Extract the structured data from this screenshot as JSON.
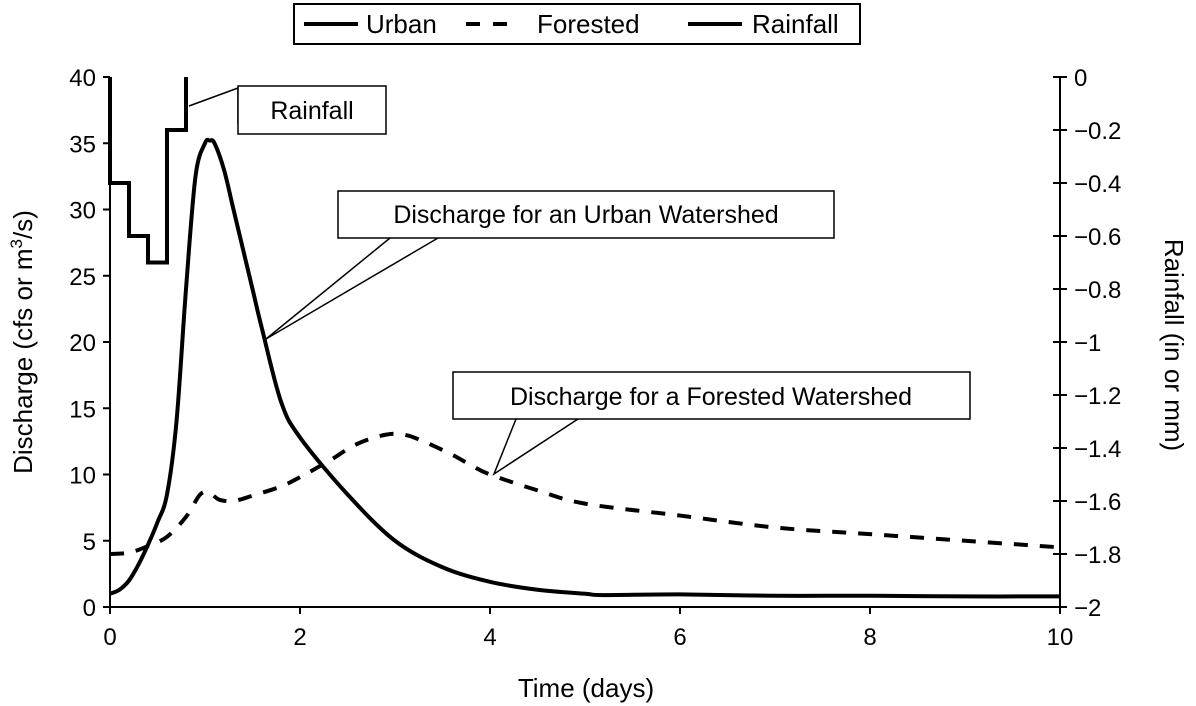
{
  "chart_data": {
    "type": "line",
    "title": "",
    "xlabel": "Time (days)",
    "ylabel": {
      "main": "Discharge (cfs or m",
      "sup": "3",
      "tail": "/s)"
    },
    "y2label": "Rainfall (in or mm)",
    "xlim": [
      0,
      10
    ],
    "ylim": [
      0,
      40
    ],
    "y2lim": [
      -2,
      0
    ],
    "x_ticks": [
      "0",
      "2",
      "4",
      "6",
      "8",
      "10"
    ],
    "y_ticks": [
      "0",
      "5",
      "10",
      "15",
      "20",
      "25",
      "30",
      "35",
      "40"
    ],
    "y2_ticks": [
      "0",
      "−0.2",
      "−0.4",
      "−0.6",
      "−0.8",
      "−1",
      "−1.2",
      "−1.4",
      "−1.6",
      "−1.8",
      "−2"
    ],
    "grid": false,
    "legend": {
      "position": "top",
      "entries": [
        {
          "label": "Urban",
          "style": "solid"
        },
        {
          "label": "Forested",
          "style": "dashed"
        },
        {
          "label": "Rainfall",
          "style": "solid"
        }
      ]
    },
    "series": [
      {
        "name": "Urban",
        "axis": "left",
        "style": "solid",
        "x": [
          0,
          0.1,
          0.2,
          0.3,
          0.4,
          0.5,
          0.6,
          0.7,
          0.8,
          0.9,
          1.0,
          1.05,
          1.1,
          1.2,
          1.3,
          1.4,
          1.5,
          1.6,
          1.8,
          2.0,
          2.5,
          3.0,
          3.5,
          4.0,
          4.5,
          5.0,
          5.2,
          6.0,
          7.0,
          8.0,
          9.0,
          10.0
        ],
        "values": [
          1.0,
          1.3,
          2.0,
          3.2,
          4.7,
          6.4,
          8.5,
          14.0,
          24.0,
          32.5,
          35.0,
          35.2,
          35.0,
          33.0,
          30.0,
          27.0,
          24.0,
          21.0,
          15.5,
          12.8,
          8.5,
          5.0,
          3.0,
          1.9,
          1.3,
          1.0,
          0.9,
          0.95,
          0.85,
          0.85,
          0.8,
          0.8
        ]
      },
      {
        "name": "Forested",
        "axis": "left",
        "style": "dashed",
        "x": [
          0,
          0.2,
          0.4,
          0.6,
          0.8,
          0.95,
          1.05,
          1.15,
          1.3,
          1.5,
          1.8,
          2.0,
          2.3,
          2.6,
          2.9,
          3.1,
          3.3,
          3.6,
          3.8,
          4.0,
          4.5,
          5.0,
          6.0,
          7.0,
          8.0,
          9.0,
          10.0
        ],
        "values": [
          4.0,
          4.1,
          4.6,
          5.3,
          6.8,
          8.5,
          8.6,
          8.1,
          8.0,
          8.4,
          9.1,
          9.8,
          11.0,
          12.3,
          13.0,
          13.0,
          12.5,
          11.5,
          10.7,
          10.0,
          8.8,
          7.8,
          6.9,
          6.0,
          5.5,
          5.0,
          4.5
        ]
      },
      {
        "name": "Rainfall",
        "axis": "right",
        "style": "step",
        "x": [
          0,
          0.2,
          0.4,
          0.6,
          0.8
        ],
        "values": [
          -0.4,
          -0.6,
          -0.7,
          -0.2,
          0
        ]
      }
    ],
    "annotations": [
      {
        "text": "Rainfall",
        "points_to_series": "Rainfall"
      },
      {
        "text": "Discharge for an Urban Watershed",
        "points_to_series": "Urban"
      },
      {
        "text": "Discharge for a Forested Watershed",
        "points_to_series": "Forested"
      }
    ]
  }
}
